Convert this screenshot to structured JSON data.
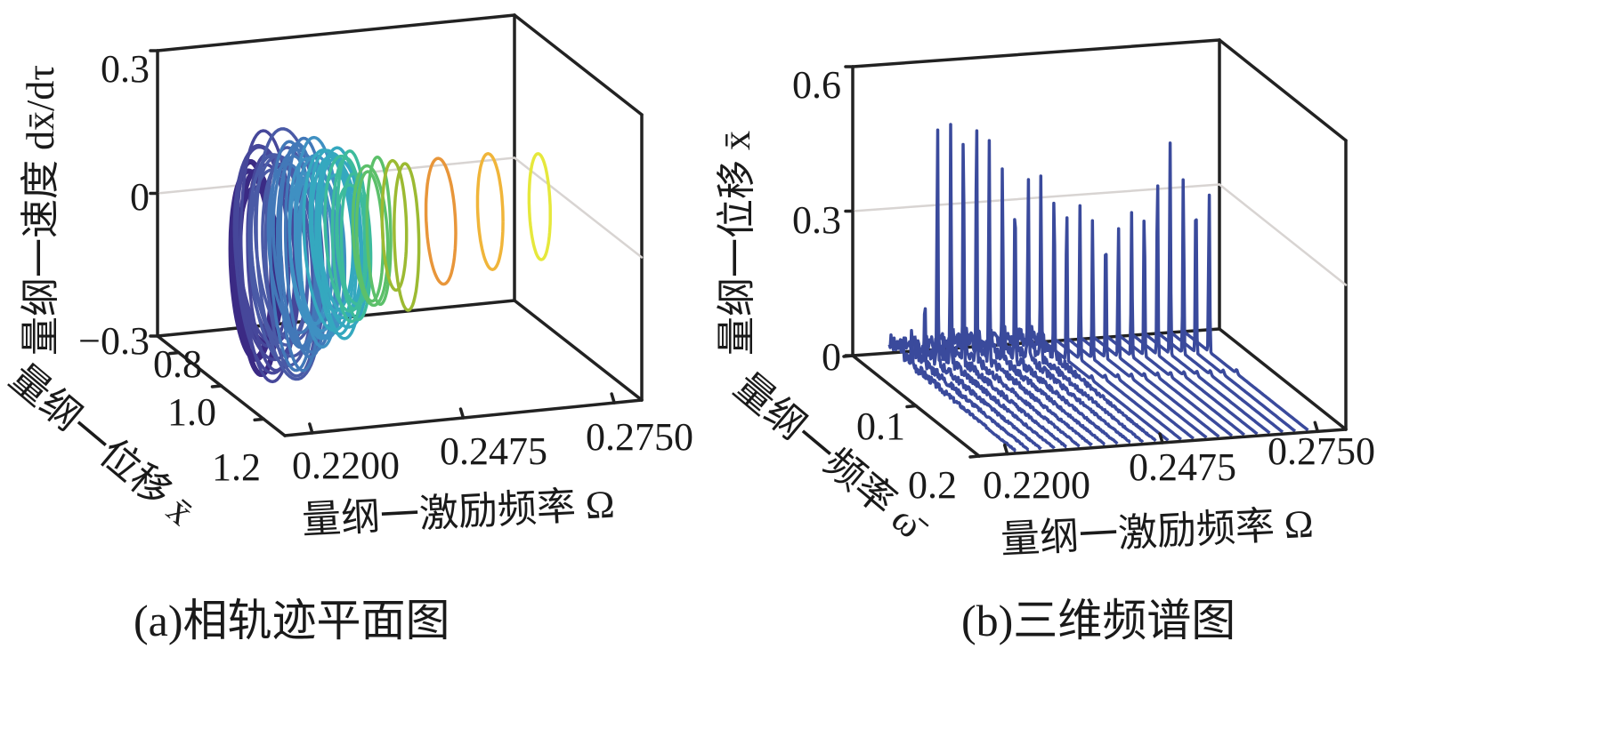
{
  "chart_data": [
    {
      "type": "line",
      "subtype": "3d-phase-trajectory",
      "caption": "(a)相轨迹平面图",
      "xlabel": "量纲一激励频率 Ω",
      "ylabel": "量纲一位移 x̄",
      "zlabel": "量纲一速度 dx̄/dτ",
      "xlim": [
        0.215,
        0.28
      ],
      "ylim": [
        0.7,
        1.3
      ],
      "zlim": [
        -0.3,
        0.3
      ],
      "xticks": [
        "0.2200",
        "0.2475",
        "0.2750"
      ],
      "xtick_values": [
        0.22,
        0.2475,
        0.275
      ],
      "yticks": [
        "0.8",
        "1.0",
        "1.2"
      ],
      "ytick_values": [
        0.8,
        1.0,
        1.2
      ],
      "zticks": [
        "0.3",
        "0",
        "−0.3"
      ],
      "ztick_values": [
        0.3,
        0,
        -0.3
      ],
      "series": [
        {
          "omega": 0.2215,
          "disp_center": 1.0,
          "disp_amp": 0.1,
          "vel_center": -0.05,
          "vel_amp": 0.19,
          "loops": 4,
          "color": "#3b2a84"
        },
        {
          "omega": 0.224,
          "disp_center": 1.0,
          "disp_amp": 0.13,
          "vel_center": -0.04,
          "vel_amp": 0.22,
          "loops": 7,
          "color": "#46479a"
        },
        {
          "omega": 0.2265,
          "disp_center": 1.0,
          "disp_amp": 0.13,
          "vel_center": -0.04,
          "vel_amp": 0.22,
          "loops": 7,
          "color": "#4a5aa6"
        },
        {
          "omega": 0.2295,
          "disp_center": 1.0,
          "disp_amp": 0.12,
          "vel_center": -0.03,
          "vel_amp": 0.21,
          "loops": 7,
          "color": "#4278b8"
        },
        {
          "omega": 0.2325,
          "disp_center": 1.0,
          "disp_amp": 0.11,
          "vel_center": -0.03,
          "vel_amp": 0.19,
          "loops": 7,
          "color": "#3f90c2"
        },
        {
          "omega": 0.2355,
          "disp_center": 1.0,
          "disp_amp": 0.1,
          "vel_center": -0.02,
          "vel_amp": 0.17,
          "loops": 7,
          "color": "#35a8bf"
        },
        {
          "omega": 0.239,
          "disp_center": 1.0,
          "disp_amp": 0.08,
          "vel_center": -0.02,
          "vel_amp": 0.15,
          "loops": 5,
          "color": "#3dbb9c"
        },
        {
          "omega": 0.243,
          "disp_center": 1.0,
          "disp_amp": 0.07,
          "vel_center": -0.01,
          "vel_amp": 0.14,
          "loops": 3,
          "color": "#5cc06a"
        },
        {
          "omega": 0.248,
          "disp_center": 1.0,
          "disp_amp": 0.07,
          "vel_center": 0.0,
          "vel_amp": 0.14,
          "loops": 2,
          "color": "#9cba32"
        },
        {
          "omega": 0.255,
          "disp_center": 1.0,
          "disp_amp": 0.07,
          "vel_center": 0.0,
          "vel_amp": 0.13,
          "loops": 1,
          "color": "#e8963a"
        },
        {
          "omega": 0.264,
          "disp_center": 1.0,
          "disp_amp": 0.06,
          "vel_center": 0.01,
          "vel_amp": 0.12,
          "loops": 1,
          "color": "#f0b53a"
        },
        {
          "omega": 0.273,
          "disp_center": 1.0,
          "disp_amp": 0.05,
          "vel_center": 0.01,
          "vel_amp": 0.11,
          "loops": 1,
          "color": "#e6e83c"
        }
      ]
    },
    {
      "type": "line",
      "subtype": "3d-waterfall-spectrum",
      "caption": "(b)三维频谱图",
      "xlabel": "量纲一激励频率 Ω",
      "ylabel": "量纲一频率 ω̄",
      "zlabel": "量纲一位移 x̄",
      "xlim": [
        0.215,
        0.28
      ],
      "ylim": [
        0,
        0.2
      ],
      "zlim": [
        0,
        0.6
      ],
      "xticks": [
        "0.2200",
        "0.2475",
        "0.2750"
      ],
      "xtick_values": [
        0.22,
        0.2475,
        0.275
      ],
      "yticks": [
        "0",
        "0.1",
        "0.2"
      ],
      "ytick_values": [
        0,
        0.1,
        0.2
      ],
      "zticks": [
        "0.6",
        "0.3",
        "0"
      ],
      "ztick_values": [
        0.6,
        0.3,
        0
      ],
      "color": "#3a4a9c",
      "series": {
        "omega": [
          0.2215,
          0.2238,
          0.226,
          0.2283,
          0.2305,
          0.2328,
          0.235,
          0.2373,
          0.2395,
          0.2418,
          0.244,
          0.2463,
          0.2485,
          0.2508,
          0.253,
          0.2553,
          0.2575,
          0.2598,
          0.262,
          0.2643,
          0.2665,
          0.2688,
          0.271,
          0.2733
        ],
        "peak_amplitude": [
          0.08,
          0.14,
          0.5,
          0.5,
          0.5,
          0.55,
          0.46,
          0.4,
          0.36,
          0.38,
          0.38,
          0.36,
          0.34,
          0.32,
          0.3,
          0.28,
          0.28,
          0.3,
          0.32,
          0.4,
          0.44,
          0.38,
          0.36,
          0.34
        ],
        "chaotic": [
          true,
          true,
          true,
          true,
          true,
          true,
          true,
          true,
          true,
          true,
          true,
          true,
          false,
          false,
          false,
          false,
          false,
          false,
          false,
          false,
          false,
          false,
          false,
          false
        ]
      }
    }
  ]
}
